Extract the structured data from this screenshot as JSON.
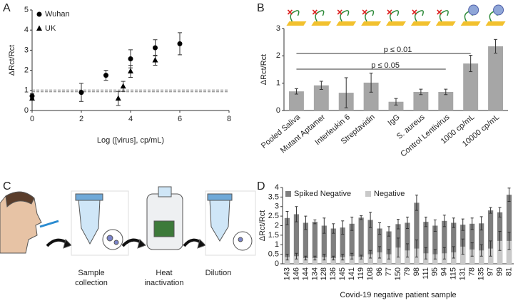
{
  "chart_data": [
    {
      "type": "scatter",
      "label": "A",
      "xlabel": "Log ([virus], cp/mL)",
      "ylabel": "ΔRct/Rct",
      "xlim": [
        0,
        8
      ],
      "xticks": [
        0,
        2,
        4,
        6,
        8
      ],
      "ylim": [
        0,
        5
      ],
      "yticks": [
        0,
        1,
        2,
        3,
        4,
        5
      ],
      "hlines": [
        0.93,
        1.02
      ],
      "series": [
        {
          "name": "Wuhan",
          "marker": "circle",
          "color": "#000000",
          "x": [
            0,
            2,
            3,
            4,
            5,
            6
          ],
          "values": [
            0.72,
            0.9,
            1.75,
            2.57,
            3.12,
            3.32
          ],
          "errors": [
            0.12,
            0.45,
            0.25,
            0.45,
            0.4,
            0.55
          ]
        },
        {
          "name": "UK",
          "marker": "triangle",
          "color": "#000000",
          "x": [
            0,
            3.5,
            3.7,
            4,
            5
          ],
          "values": [
            0.6,
            0.6,
            1.2,
            1.95,
            2.5
          ],
          "errors": [
            0.05,
            0.35,
            0.25,
            0.3,
            0.25
          ]
        }
      ]
    },
    {
      "type": "bar",
      "label": "B",
      "ylabel": "ΔRct/Rct",
      "ylim": [
        0,
        3
      ],
      "yticks": [
        0,
        1,
        2,
        3
      ],
      "color": "#a6a6a6",
      "categories": [
        "Pooled Saliva",
        "Mutant Aptamer",
        "Interleukin 6",
        "Streptavidin",
        "IgG",
        "S. aureus",
        "Control Lentivirus",
        "1000 cp/mL",
        "10000 cp/mL"
      ],
      "values": [
        0.7,
        0.92,
        0.65,
        1.02,
        0.32,
        0.68,
        0.68,
        1.72,
        2.35
      ],
      "errors": [
        0.1,
        0.15,
        0.55,
        0.35,
        0.12,
        0.1,
        0.1,
        0.3,
        0.25
      ],
      "annotations": [
        "p ≤ 0.01",
        "p ≤ 0.05"
      ]
    },
    {
      "type": "bar",
      "label": "D",
      "barmode": "overlay",
      "legend": "top-left",
      "ylabel": "ΔRct/Rct",
      "xlabel": "Covid-19 negative patient sample",
      "ylim": [
        0,
        4
      ],
      "yticks": [
        0,
        0.5,
        1,
        1.5,
        2,
        2.5,
        3,
        3.5,
        4
      ],
      "categories": [
        "143",
        "146",
        "144",
        "134",
        "128",
        "136",
        "145",
        "141",
        "119",
        "108",
        "96",
        "77",
        "150",
        "79",
        "98",
        "111",
        "95",
        "94",
        "115",
        "131",
        "78",
        "135",
        "97",
        "99",
        "81"
      ],
      "series": [
        {
          "name": "Spiked Negative",
          "color": "#7f7f7f",
          "values": [
            2.4,
            2.6,
            2.15,
            2.2,
            2.0,
            1.85,
            1.9,
            2.1,
            2.42,
            2.3,
            1.85,
            1.7,
            2.08,
            2.15,
            3.2,
            2.2,
            2.0,
            2.25,
            2.15,
            2.05,
            2.1,
            2.12,
            2.8,
            2.7,
            3.62
          ],
          "errors": [
            0.35,
            0.4,
            0.35,
            0.1,
            0.4,
            0.25,
            0.35,
            0.35,
            0.1,
            0.4,
            0.3,
            0.25,
            0.25,
            0.3,
            0.4,
            0.25,
            0.3,
            0.3,
            0.25,
            0.3,
            0.3,
            0.35,
            0.15,
            0.25,
            0.35
          ]
        },
        {
          "name": "Negative",
          "color": "#c9c9c9",
          "values": [
            0.35,
            0.4,
            0.3,
            0.3,
            0.35,
            0.3,
            0.35,
            0.4,
            0.35,
            0.5,
            0.6,
            0.5,
            0.85,
            0.7,
            0.8,
            0.55,
            0.5,
            0.55,
            0.6,
            0.9,
            0.75,
            0.7,
            0.8,
            1.2,
            1.2
          ],
          "errors": [
            0.15,
            0.15,
            0.1,
            0.1,
            0.15,
            0.1,
            0.15,
            0.15,
            0.1,
            0.2,
            0.3,
            0.25,
            0.5,
            0.35,
            0.45,
            0.3,
            0.25,
            0.3,
            0.3,
            0.4,
            0.35,
            0.3,
            0.4,
            0.5,
            0.45
          ]
        }
      ]
    }
  ],
  "panel_c": {
    "label": "C",
    "steps": [
      "Sample collection",
      "Heat inactivation",
      "Dilution"
    ]
  }
}
